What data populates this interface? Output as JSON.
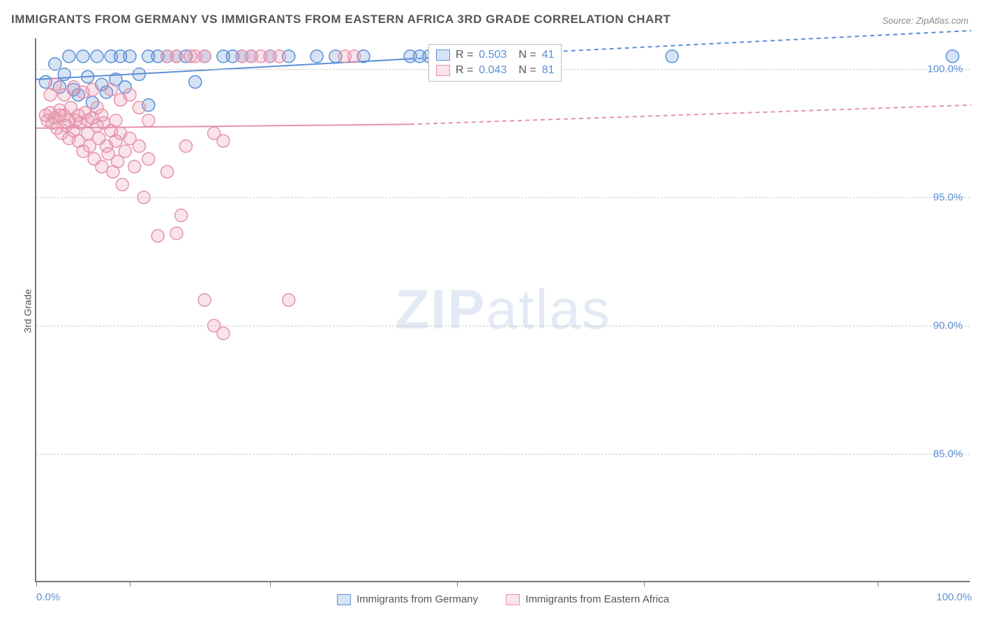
{
  "title": "IMMIGRANTS FROM GERMANY VS IMMIGRANTS FROM EASTERN AFRICA 3RD GRADE CORRELATION CHART",
  "source": "Source: ZipAtlas.com",
  "ylabel": "3rd Grade",
  "watermark": {
    "bold": "ZIP",
    "light": "atlas"
  },
  "chart": {
    "type": "scatter-correlation",
    "background_color": "#ffffff",
    "grid_color": "#cccccc",
    "axis_color": "#777777",
    "tick_label_color": "#5b8fd6",
    "text_color": "#555555",
    "xlim": [
      0,
      100
    ],
    "ylim": [
      80,
      101.2
    ],
    "yticks": [
      85.0,
      90.0,
      95.0,
      100.0
    ],
    "ytick_labels": [
      "85.0%",
      "90.0%",
      "95.0%",
      "100.0%"
    ],
    "xticks": [
      0,
      10,
      25,
      45,
      65,
      90
    ],
    "xaxis_labels": [
      {
        "x": 0,
        "text": "0.0%"
      },
      {
        "x": 100,
        "text": "100.0%"
      }
    ],
    "marker_radius": 9,
    "marker_fill_opacity": 0.25,
    "marker_stroke_width": 1.5,
    "line_width": 2,
    "series": [
      {
        "name": "Immigrants from Germany",
        "color": "#5b8fd6",
        "fill": "rgba(91,143,214,0.25)",
        "R": "0.503",
        "N": "41",
        "regression": {
          "x1": 0,
          "y1": 99.6,
          "x2": 40,
          "y2": 100.4,
          "dash_x2": 100,
          "dash_y2": 101.5
        },
        "points": [
          [
            1,
            99.5
          ],
          [
            2,
            100.2
          ],
          [
            2.5,
            99.3
          ],
          [
            3,
            99.8
          ],
          [
            3.5,
            100.5
          ],
          [
            4,
            99.2
          ],
          [
            4.5,
            99.0
          ],
          [
            5,
            100.5
          ],
          [
            5.5,
            99.7
          ],
          [
            6,
            98.7
          ],
          [
            6.5,
            100.5
          ],
          [
            7,
            99.4
          ],
          [
            7.5,
            99.1
          ],
          [
            8,
            100.5
          ],
          [
            8.5,
            99.6
          ],
          [
            9,
            100.5
          ],
          [
            9.5,
            99.3
          ],
          [
            10,
            100.5
          ],
          [
            11,
            99.8
          ],
          [
            12,
            100.5
          ],
          [
            12,
            98.6
          ],
          [
            13,
            100.5
          ],
          [
            14,
            100.5
          ],
          [
            15,
            100.5
          ],
          [
            16,
            100.5
          ],
          [
            17,
            99.5
          ],
          [
            18,
            100.5
          ],
          [
            20,
            100.5
          ],
          [
            21,
            100.5
          ],
          [
            22,
            100.5
          ],
          [
            23,
            100.5
          ],
          [
            25,
            100.5
          ],
          [
            27,
            100.5
          ],
          [
            30,
            100.5
          ],
          [
            32,
            100.5
          ],
          [
            35,
            100.5
          ],
          [
            40,
            100.5
          ],
          [
            41,
            100.5
          ],
          [
            42,
            100.5
          ],
          [
            68,
            100.5
          ],
          [
            98,
            100.5
          ]
        ]
      },
      {
        "name": "Immigrants from Eastern Africa",
        "color": "#e693ac",
        "fill": "rgba(230,147,172,0.25)",
        "R": "0.043",
        "N": "81",
        "regression": {
          "x1": 0,
          "y1": 97.7,
          "x2": 40,
          "y2": 97.85,
          "dash_x2": 100,
          "dash_y2": 98.6
        },
        "points": [
          [
            1,
            98.2
          ],
          [
            1.2,
            98.0
          ],
          [
            1.5,
            98.3
          ],
          [
            1.7,
            97.9
          ],
          [
            2,
            98.1
          ],
          [
            2.2,
            97.7
          ],
          [
            2.5,
            98.4
          ],
          [
            2.7,
            97.5
          ],
          [
            3,
            98.2
          ],
          [
            3.2,
            97.8
          ],
          [
            3.5,
            97.3
          ],
          [
            3.7,
            98.5
          ],
          [
            4,
            97.6
          ],
          [
            4.2,
            98.0
          ],
          [
            4.5,
            97.2
          ],
          [
            4.7,
            97.9
          ],
          [
            5,
            96.8
          ],
          [
            5.2,
            98.3
          ],
          [
            5.5,
            97.5
          ],
          [
            5.7,
            97.0
          ],
          [
            6,
            98.1
          ],
          [
            6.2,
            96.5
          ],
          [
            6.5,
            97.8
          ],
          [
            6.7,
            97.3
          ],
          [
            7,
            96.2
          ],
          [
            7.2,
            97.9
          ],
          [
            7.5,
            97.0
          ],
          [
            7.7,
            96.7
          ],
          [
            8,
            97.6
          ],
          [
            8.2,
            96.0
          ],
          [
            8.5,
            97.2
          ],
          [
            8.7,
            96.4
          ],
          [
            9,
            97.5
          ],
          [
            9.2,
            95.5
          ],
          [
            9.5,
            96.8
          ],
          [
            10,
            97.3
          ],
          [
            10.5,
            96.2
          ],
          [
            11,
            97.0
          ],
          [
            11.5,
            95.0
          ],
          [
            12,
            96.5
          ],
          [
            13,
            93.5
          ],
          [
            14,
            96.0
          ],
          [
            15,
            93.6
          ],
          [
            15.5,
            94.3
          ],
          [
            16,
            97.0
          ],
          [
            17,
            100.5
          ],
          [
            18,
            100.5
          ],
          [
            19,
            97.5
          ],
          [
            14,
            100.5
          ],
          [
            15,
            100.5
          ],
          [
            16.5,
            100.5
          ],
          [
            22,
            100.5
          ],
          [
            23,
            100.5
          ],
          [
            24,
            100.5
          ],
          [
            25,
            100.5
          ],
          [
            26,
            100.5
          ],
          [
            18,
            91.0
          ],
          [
            19,
            90.0
          ],
          [
            20,
            89.7
          ],
          [
            27,
            91.0
          ],
          [
            33,
            100.5
          ],
          [
            34,
            100.5
          ],
          [
            20,
            97.2
          ],
          [
            6,
            99.2
          ],
          [
            3,
            99.0
          ],
          [
            4,
            99.3
          ],
          [
            5,
            99.1
          ],
          [
            2,
            99.4
          ],
          [
            1.5,
            99.0
          ],
          [
            8,
            99.2
          ],
          [
            9,
            98.8
          ],
          [
            10,
            99.0
          ],
          [
            11,
            98.5
          ],
          [
            12,
            98.0
          ],
          [
            7,
            98.2
          ],
          [
            8.5,
            98.0
          ],
          [
            6.5,
            98.5
          ],
          [
            5.5,
            98.0
          ],
          [
            4.5,
            98.2
          ],
          [
            3.5,
            98.0
          ],
          [
            2.5,
            98.2
          ]
        ]
      }
    ],
    "legend_box": {
      "left_pct": 42
    },
    "bottom_legend": [
      {
        "color": "#5b8fd6",
        "fill": "rgba(91,143,214,0.25)",
        "label": "Immigrants from Germany"
      },
      {
        "color": "#e693ac",
        "fill": "rgba(230,147,172,0.25)",
        "label": "Immigrants from Eastern Africa"
      }
    ]
  }
}
